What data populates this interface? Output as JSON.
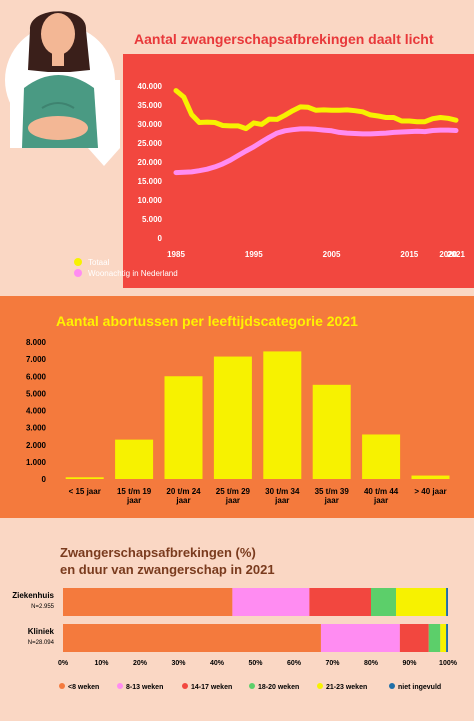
{
  "colors": {
    "page_bg": "#fad7c4",
    "red": "#f2473f",
    "orange": "#f47a3d",
    "yellow": "#f7f200",
    "pink": "#ff8cf2",
    "title_red": "#e8383a",
    "title_yellow": "#fff200",
    "title_brown": "#7a3b1e"
  },
  "header": {
    "illustration": "pregnant-woman-illustration"
  },
  "chart_data": [
    {
      "type": "line",
      "title": "Aantal zwangerschapsafbrekingen daalt licht",
      "x_ticks": [
        "1985",
        "1995",
        "2005",
        "2015",
        "2020",
        "2021"
      ],
      "x_tick_values": [
        1985,
        1995,
        2005,
        2015,
        2020,
        2021
      ],
      "y_ticks": [
        "0",
        "5.000",
        "10.000",
        "15.000",
        "20.000",
        "25.000",
        "30.000",
        "35.000",
        "40.000"
      ],
      "ylim": [
        0,
        40000
      ],
      "xlim": [
        1985,
        2021
      ],
      "grid": false,
      "legend": "bottom-left",
      "series": [
        {
          "name": "Totaal",
          "color": "#f7f200",
          "points": [
            [
              1985,
              38800
            ],
            [
              1986,
              37100
            ],
            [
              1987,
              32500
            ],
            [
              1988,
              30400
            ],
            [
              1989,
              30500
            ],
            [
              1990,
              30400
            ],
            [
              1991,
              29600
            ],
            [
              1992,
              29500
            ],
            [
              1993,
              29500
            ],
            [
              1994,
              28800
            ],
            [
              1995,
              30300
            ],
            [
              1996,
              29900
            ],
            [
              1997,
              31300
            ],
            [
              1998,
              31200
            ],
            [
              1999,
              32300
            ],
            [
              2000,
              33500
            ],
            [
              2001,
              34500
            ],
            [
              2002,
              34400
            ],
            [
              2003,
              33600
            ],
            [
              2004,
              33700
            ],
            [
              2005,
              33600
            ],
            [
              2006,
              33600
            ],
            [
              2007,
              33700
            ],
            [
              2008,
              33500
            ],
            [
              2009,
              33200
            ],
            [
              2010,
              32400
            ],
            [
              2011,
              32100
            ],
            [
              2012,
              31700
            ],
            [
              2013,
              31700
            ],
            [
              2014,
              30800
            ],
            [
              2015,
              30800
            ],
            [
              2016,
              30600
            ],
            [
              2017,
              30600
            ],
            [
              2018,
              31400
            ],
            [
              2019,
              31700
            ],
            [
              2020,
              31500
            ],
            [
              2021,
              31000
            ]
          ]
        },
        {
          "name": "Woonachtig in Nederland",
          "color": "#ff8cf2",
          "points": [
            [
              1985,
              17200
            ],
            [
              1986,
              17300
            ],
            [
              1987,
              17400
            ],
            [
              1988,
              17700
            ],
            [
              1989,
              18100
            ],
            [
              1990,
              18700
            ],
            [
              1991,
              19500
            ],
            [
              1992,
              20500
            ],
            [
              1993,
              21700
            ],
            [
              1994,
              22900
            ],
            [
              1995,
              24000
            ],
            [
              1996,
              25300
            ],
            [
              1997,
              26500
            ],
            [
              1998,
              27600
            ],
            [
              1999,
              28200
            ],
            [
              2000,
              28500
            ],
            [
              2001,
              28700
            ],
            [
              2002,
              28700
            ],
            [
              2003,
              28600
            ],
            [
              2004,
              28400
            ],
            [
              2005,
              28200
            ],
            [
              2006,
              27800
            ],
            [
              2007,
              27600
            ],
            [
              2008,
              27500
            ],
            [
              2009,
              27400
            ],
            [
              2010,
              27400
            ],
            [
              2011,
              27500
            ],
            [
              2012,
              27600
            ],
            [
              2013,
              27800
            ],
            [
              2014,
              27900
            ],
            [
              2015,
              28000
            ],
            [
              2016,
              28100
            ],
            [
              2017,
              28000
            ],
            [
              2018,
              28300
            ],
            [
              2019,
              28400
            ],
            [
              2020,
              28400
            ],
            [
              2021,
              28300
            ]
          ]
        }
      ]
    },
    {
      "type": "bar",
      "title": "Aantal abortussen per leeftijdscategorie 2021",
      "categories": [
        [
          "< 15 jaar"
        ],
        [
          "15 t/m 19",
          "jaar"
        ],
        [
          "20 t/m 24",
          "jaar"
        ],
        [
          "25 t/m 29",
          "jaar"
        ],
        [
          "30 t/m 34",
          "jaar"
        ],
        [
          "35 t/m 39",
          "jaar"
        ],
        [
          "40 t/m 44",
          "jaar"
        ],
        [
          "> 40 jaar"
        ]
      ],
      "values": [
        100,
        2300,
        6000,
        7150,
        7450,
        5500,
        2600,
        200
      ],
      "y_ticks": [
        "0",
        "1.000",
        "2.000",
        "3.000",
        "4.000",
        "5.000",
        "6.000",
        "7.000",
        "8.000"
      ],
      "ylim": [
        0,
        8000
      ],
      "grid": false,
      "color": "#f7f200"
    },
    {
      "type": "bar",
      "orientation": "horizontal-stacked-percent",
      "title": [
        "Zwangerschapsafbrekingen (%)",
        "en duur van zwangerschap in 2021"
      ],
      "rows": [
        {
          "label": "Ziekenhuis",
          "sublabel": "N=2.955",
          "values": [
            44,
            20,
            16,
            6.5,
            13,
            0.5
          ]
        },
        {
          "label": "Kliniek",
          "sublabel": "N=28.094",
          "values": [
            67,
            20.5,
            7.5,
            3,
            1.5,
            0.5
          ]
        }
      ],
      "x_ticks": [
        "0%",
        "10%",
        "20%",
        "30%",
        "40%",
        "50%",
        "60%",
        "70%",
        "80%",
        "90%",
        "100%"
      ],
      "xlim": [
        0,
        100
      ],
      "legend": "bottom",
      "categories": [
        "<8 weken",
        "8-13 weken",
        "14-17 weken",
        "18-20 weken",
        "21-23 weken",
        "niet ingevuld"
      ],
      "category_colors": [
        "#f47a3d",
        "#ff8cf2",
        "#f2473f",
        "#5ccf6a",
        "#f7f200",
        "#1f6fa8"
      ]
    }
  ]
}
